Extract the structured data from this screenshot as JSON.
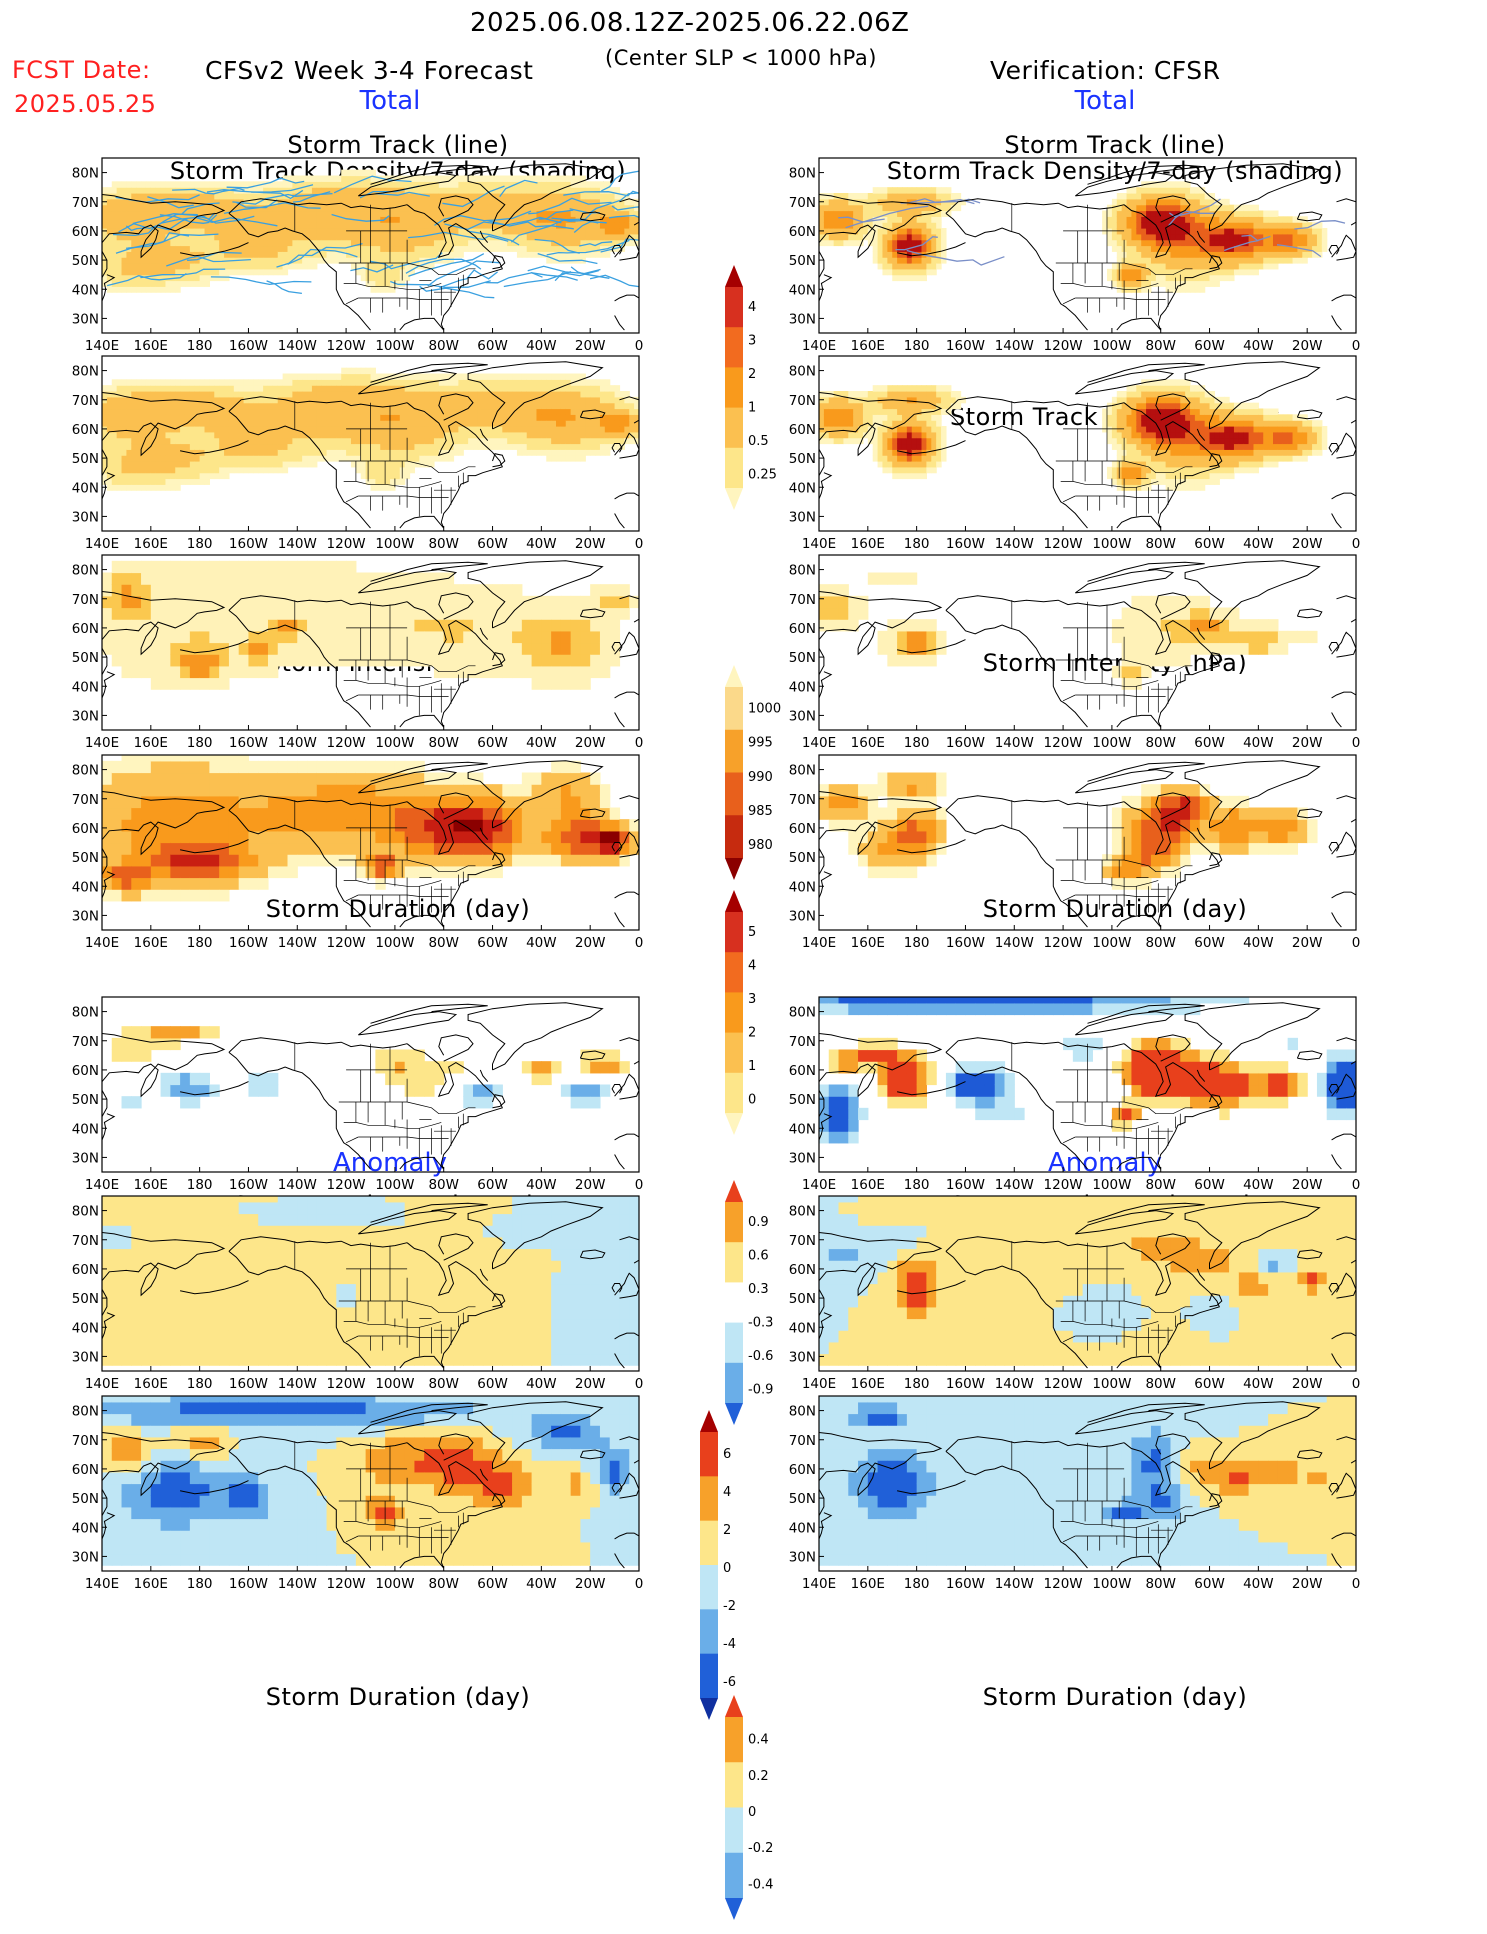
{
  "header": {
    "period": "2025.06.08.12Z-2025.06.22.06Z",
    "fcst_label": "FCST Date:",
    "fcst_date": "2025.05.25",
    "model": "CFSv2 Week 3-4 Forecast",
    "criterion": "(Center SLP < 1000 hPa)",
    "verification": "Verification: CFSR",
    "total_left": "Total",
    "total_right": "Total",
    "anomaly_left": "Anomaly",
    "anomaly_right": "Anomaly"
  },
  "titles": {
    "track_line": "Storm Track (line)",
    "track_density_shading": "Storm Track Density/7-day (shading)",
    "track_density": "Storm Track Density/7-day",
    "intensity": "Storm Intensity (hPa)",
    "duration": "Storm Duration (day)"
  },
  "axes": {
    "lat_ticks": [
      "80N",
      "70N",
      "60N",
      "50N",
      "40N",
      "30N"
    ],
    "lon_ticks_left": [
      "140E",
      "160E",
      "180",
      "160W",
      "140W",
      "120W",
      "100W",
      "80W",
      "60W",
      "40W",
      "20W",
      "0"
    ],
    "lon_ticks_right": [
      "140E",
      "160E",
      "180",
      "160W",
      "140W",
      "120W",
      "100W",
      "80W",
      "60W",
      "40W",
      "20W",
      "0"
    ]
  },
  "colorbars": {
    "density": {
      "labels": [
        "4",
        "3",
        "2",
        "1",
        "0.5",
        "0.25"
      ],
      "colors": [
        "#a50000",
        "#d7301f",
        "#f26b1f",
        "#f99a1c",
        "#fbc050",
        "#fde68a",
        "#fff5bf"
      ]
    },
    "intensity": {
      "labels": [
        "1000",
        "995",
        "990",
        "985",
        "980"
      ],
      "colors": [
        "#fff5bf",
        "#fbd98a",
        "#f7a12a",
        "#e8601c",
        "#c62b0f",
        "#8b0000"
      ]
    },
    "duration": {
      "labels": [
        "5",
        "4",
        "3",
        "2",
        "1",
        "0"
      ],
      "colors": [
        "#a50000",
        "#d7301f",
        "#f26b1f",
        "#f99a1c",
        "#fbc050",
        "#fde68a",
        "#fff5bf"
      ]
    },
    "anom_density": {
      "labels": [
        "0.9",
        "0.6",
        "0.3",
        "-0.3",
        "-0.6",
        "-0.9"
      ],
      "colors": [
        "#e8401c",
        "#f7a12a",
        "#fde68a",
        "#ffffff",
        "#bfe6f5",
        "#6aaee8",
        "#2060d8"
      ]
    },
    "anom_intensity": {
      "labels": [
        "6",
        "4",
        "2",
        "0",
        "-2",
        "-4",
        "-6"
      ],
      "colors": [
        "#a50000",
        "#e8401c",
        "#f7a12a",
        "#fde68a",
        "#bfe6f5",
        "#6aaee8",
        "#2060d8",
        "#1030a0"
      ]
    },
    "anom_duration": {
      "labels": [
        "0.4",
        "0.2",
        "0",
        "-0.2",
        "-0.4"
      ],
      "colors": [
        "#e8401c",
        "#f7a12a",
        "#fde68a",
        "#bfe6f5",
        "#6aaee8",
        "#2060d8"
      ]
    }
  },
  "colors": {
    "track_line": "#3aa0e0",
    "land_outline": "#000000"
  }
}
